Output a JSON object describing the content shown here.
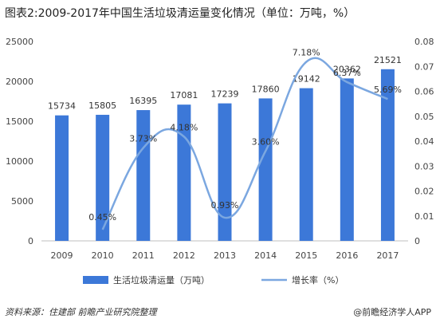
{
  "title": "图表2:2009-2017年中国生活垃圾清运量变化情况（单位：万吨，%）",
  "chart_data": {
    "type": "bar",
    "categories": [
      "2009",
      "2010",
      "2011",
      "2012",
      "2013",
      "2014",
      "2015",
      "2016",
      "2017"
    ],
    "series": [
      {
        "name": "生活垃圾清运量（万吨）",
        "type": "bar",
        "axis": "left",
        "color": "#3c78d8",
        "values": [
          15734,
          15805,
          16395,
          17081,
          17239,
          17860,
          19142,
          20362,
          21521
        ],
        "labels": [
          "15734",
          "15805",
          "16395",
          "17081",
          "17239",
          "17860",
          "19142",
          "20362",
          "21521"
        ]
      },
      {
        "name": "增长率（%）",
        "type": "line",
        "axis": "right",
        "color": "#7ba7e0",
        "smooth": true,
        "values": [
          null,
          0.0045,
          0.0373,
          0.0418,
          0.0093,
          0.036,
          0.0718,
          0.0637,
          0.0569
        ],
        "labels": [
          "",
          "0.45%",
          "3.73%",
          "4.18%",
          "0.93%",
          "3.60%",
          "7.18%",
          "6.37%",
          "5.69%"
        ]
      }
    ],
    "y_left": {
      "min": 0,
      "max": 25000,
      "ticks": [
        "0",
        "5000",
        "10000",
        "15000",
        "20000",
        "25000"
      ]
    },
    "y_right": {
      "min": 0,
      "max": 0.08,
      "ticks": [
        "0",
        "0.01",
        "0.02",
        "0.03",
        "0.04",
        "0.05",
        "0.06",
        "0.07",
        "0.08"
      ]
    },
    "grid": false,
    "legend_position": "bottom"
  },
  "footer": {
    "source": "资料来源：住建部 前瞻产业研究院整理",
    "brand": "@前瞻经济学人APP"
  }
}
